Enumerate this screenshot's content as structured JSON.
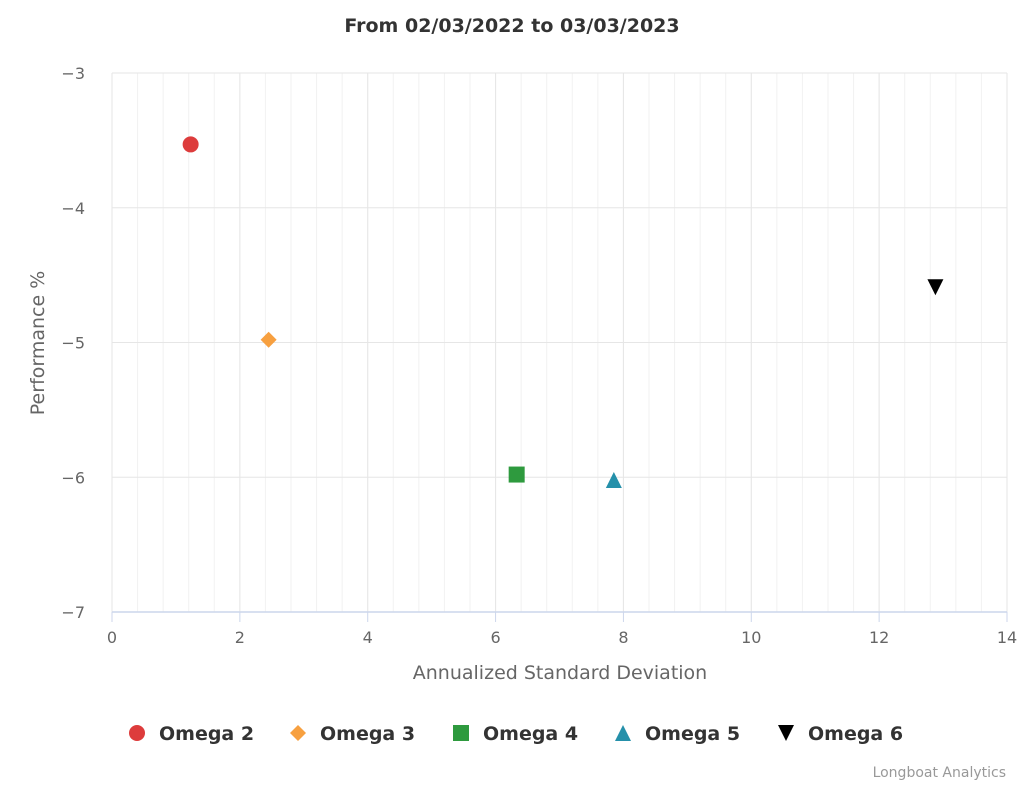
{
  "chart_data": {
    "type": "scatter",
    "title": "From 02/03/2022 to 03/03/2023",
    "xlabel": "Annualized Standard Deviation",
    "ylabel": "Performance %",
    "xlim": [
      0,
      14
    ],
    "ylim": [
      -7,
      -3
    ],
    "x_ticks": [
      "0",
      "2",
      "4",
      "6",
      "8",
      "10",
      "12",
      "14"
    ],
    "y_ticks": [
      "−3",
      "−4",
      "−5",
      "−6",
      "−7"
    ],
    "grid": true,
    "legend_position": "bottom",
    "series": [
      {
        "name": "Omega 2",
        "x": 1.23,
        "y": -3.53,
        "marker": "circle",
        "color": "#dd3c3c"
      },
      {
        "name": "Omega 3",
        "x": 2.45,
        "y": -4.98,
        "marker": "diamond",
        "color": "#f7a040"
      },
      {
        "name": "Omega 4",
        "x": 6.33,
        "y": -5.98,
        "marker": "square",
        "color": "#2e9a3e"
      },
      {
        "name": "Omega 5",
        "x": 7.85,
        "y": -6.02,
        "marker": "triangle",
        "color": "#2590aa"
      },
      {
        "name": "Omega 6",
        "x": 12.88,
        "y": -4.59,
        "marker": "triangle-down",
        "color": "#000000"
      }
    ]
  },
  "credits": "Longboat Analytics"
}
